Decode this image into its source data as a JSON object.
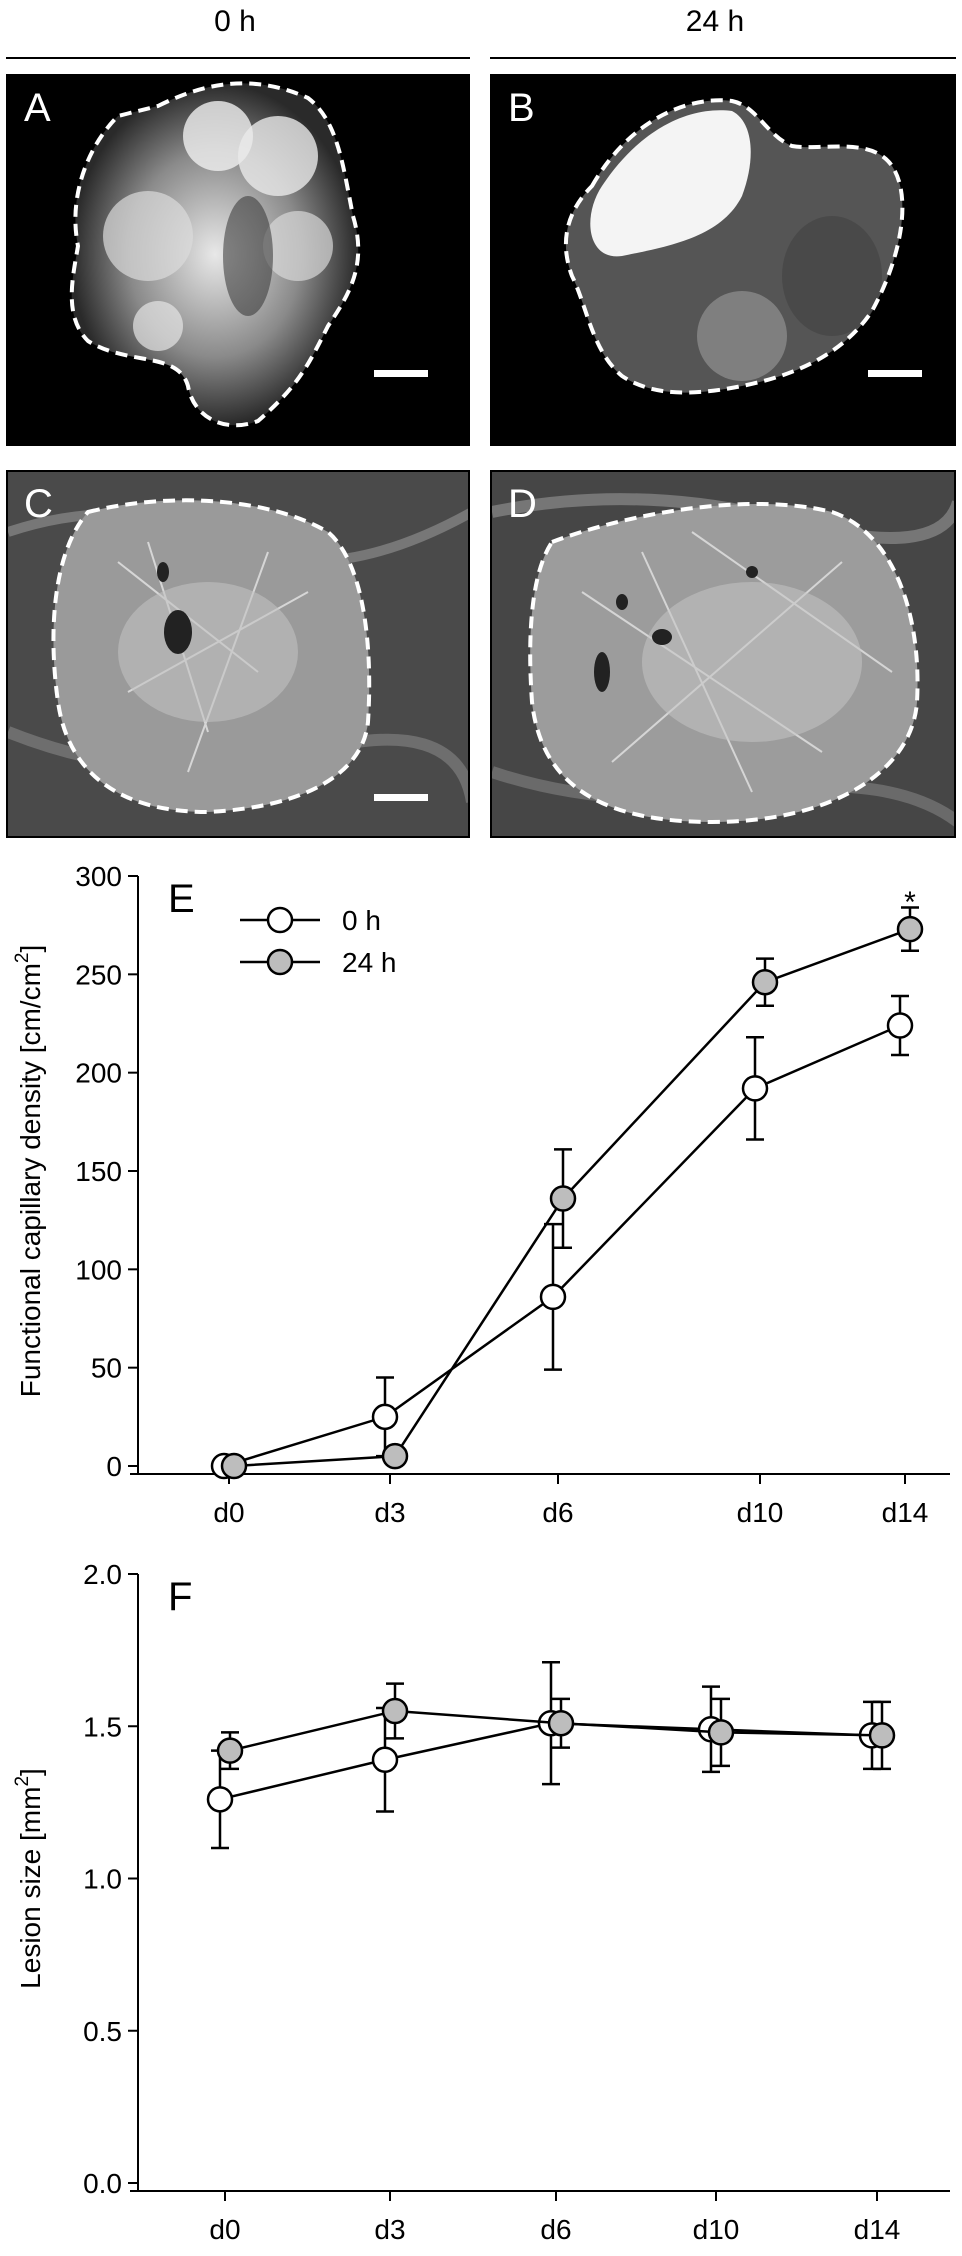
{
  "columns": {
    "left": "0 h",
    "right": "24 h"
  },
  "panels": {
    "A": "A",
    "B": "B",
    "C": "C",
    "D": "D"
  },
  "colors": {
    "open_marker": "#ffffff",
    "filled_marker": "#bdbdbd",
    "line": "#000000"
  },
  "chart_data": [
    {
      "type": "line",
      "panel_label": "E",
      "title": "",
      "xlabel": "",
      "ylabel": "Functional capillary density [cm/cm²]",
      "ylabel_main": "Functional capillary density [cm/cm",
      "ylabel_sup": "2",
      "ylabel_end": "]",
      "categories": [
        "d0",
        "d3",
        "d6",
        "d10",
        "d14"
      ],
      "ylim": [
        0,
        300
      ],
      "yticks": [
        "0",
        "50",
        "100",
        "150",
        "200",
        "250",
        "300"
      ],
      "legend_position": "top-left",
      "annotation": "*",
      "series": [
        {
          "name": "0 h",
          "marker": "open",
          "values": [
            0,
            25,
            86,
            192,
            224
          ],
          "error": [
            0,
            20,
            37,
            26,
            15
          ]
        },
        {
          "name": "24 h",
          "marker": "filled",
          "values": [
            0,
            5,
            136,
            246,
            273
          ],
          "error": [
            0,
            0,
            25,
            12,
            11
          ]
        }
      ]
    },
    {
      "type": "line",
      "panel_label": "F",
      "title": "",
      "xlabel": "",
      "ylabel": "Lesion size [mm²]",
      "ylabel_main": "Lesion size [mm",
      "ylabel_sup": "2",
      "ylabel_end": "]",
      "categories": [
        "d0",
        "d3",
        "d6",
        "d10",
        "d14"
      ],
      "ylim": [
        0,
        2
      ],
      "yticks": [
        "0.0",
        "0.5",
        "1.0",
        "1.5",
        "2.0"
      ],
      "series": [
        {
          "name": "0 h",
          "marker": "open",
          "values": [
            1.26,
            1.39,
            1.51,
            1.49,
            1.47
          ],
          "error": [
            0.16,
            0.17,
            0.2,
            0.14,
            0.11
          ]
        },
        {
          "name": "24 h",
          "marker": "filled",
          "values": [
            1.42,
            1.55,
            1.51,
            1.48,
            1.47
          ],
          "error": [
            0.06,
            0.09,
            0.08,
            0.11,
            0.11
          ]
        }
      ]
    }
  ]
}
